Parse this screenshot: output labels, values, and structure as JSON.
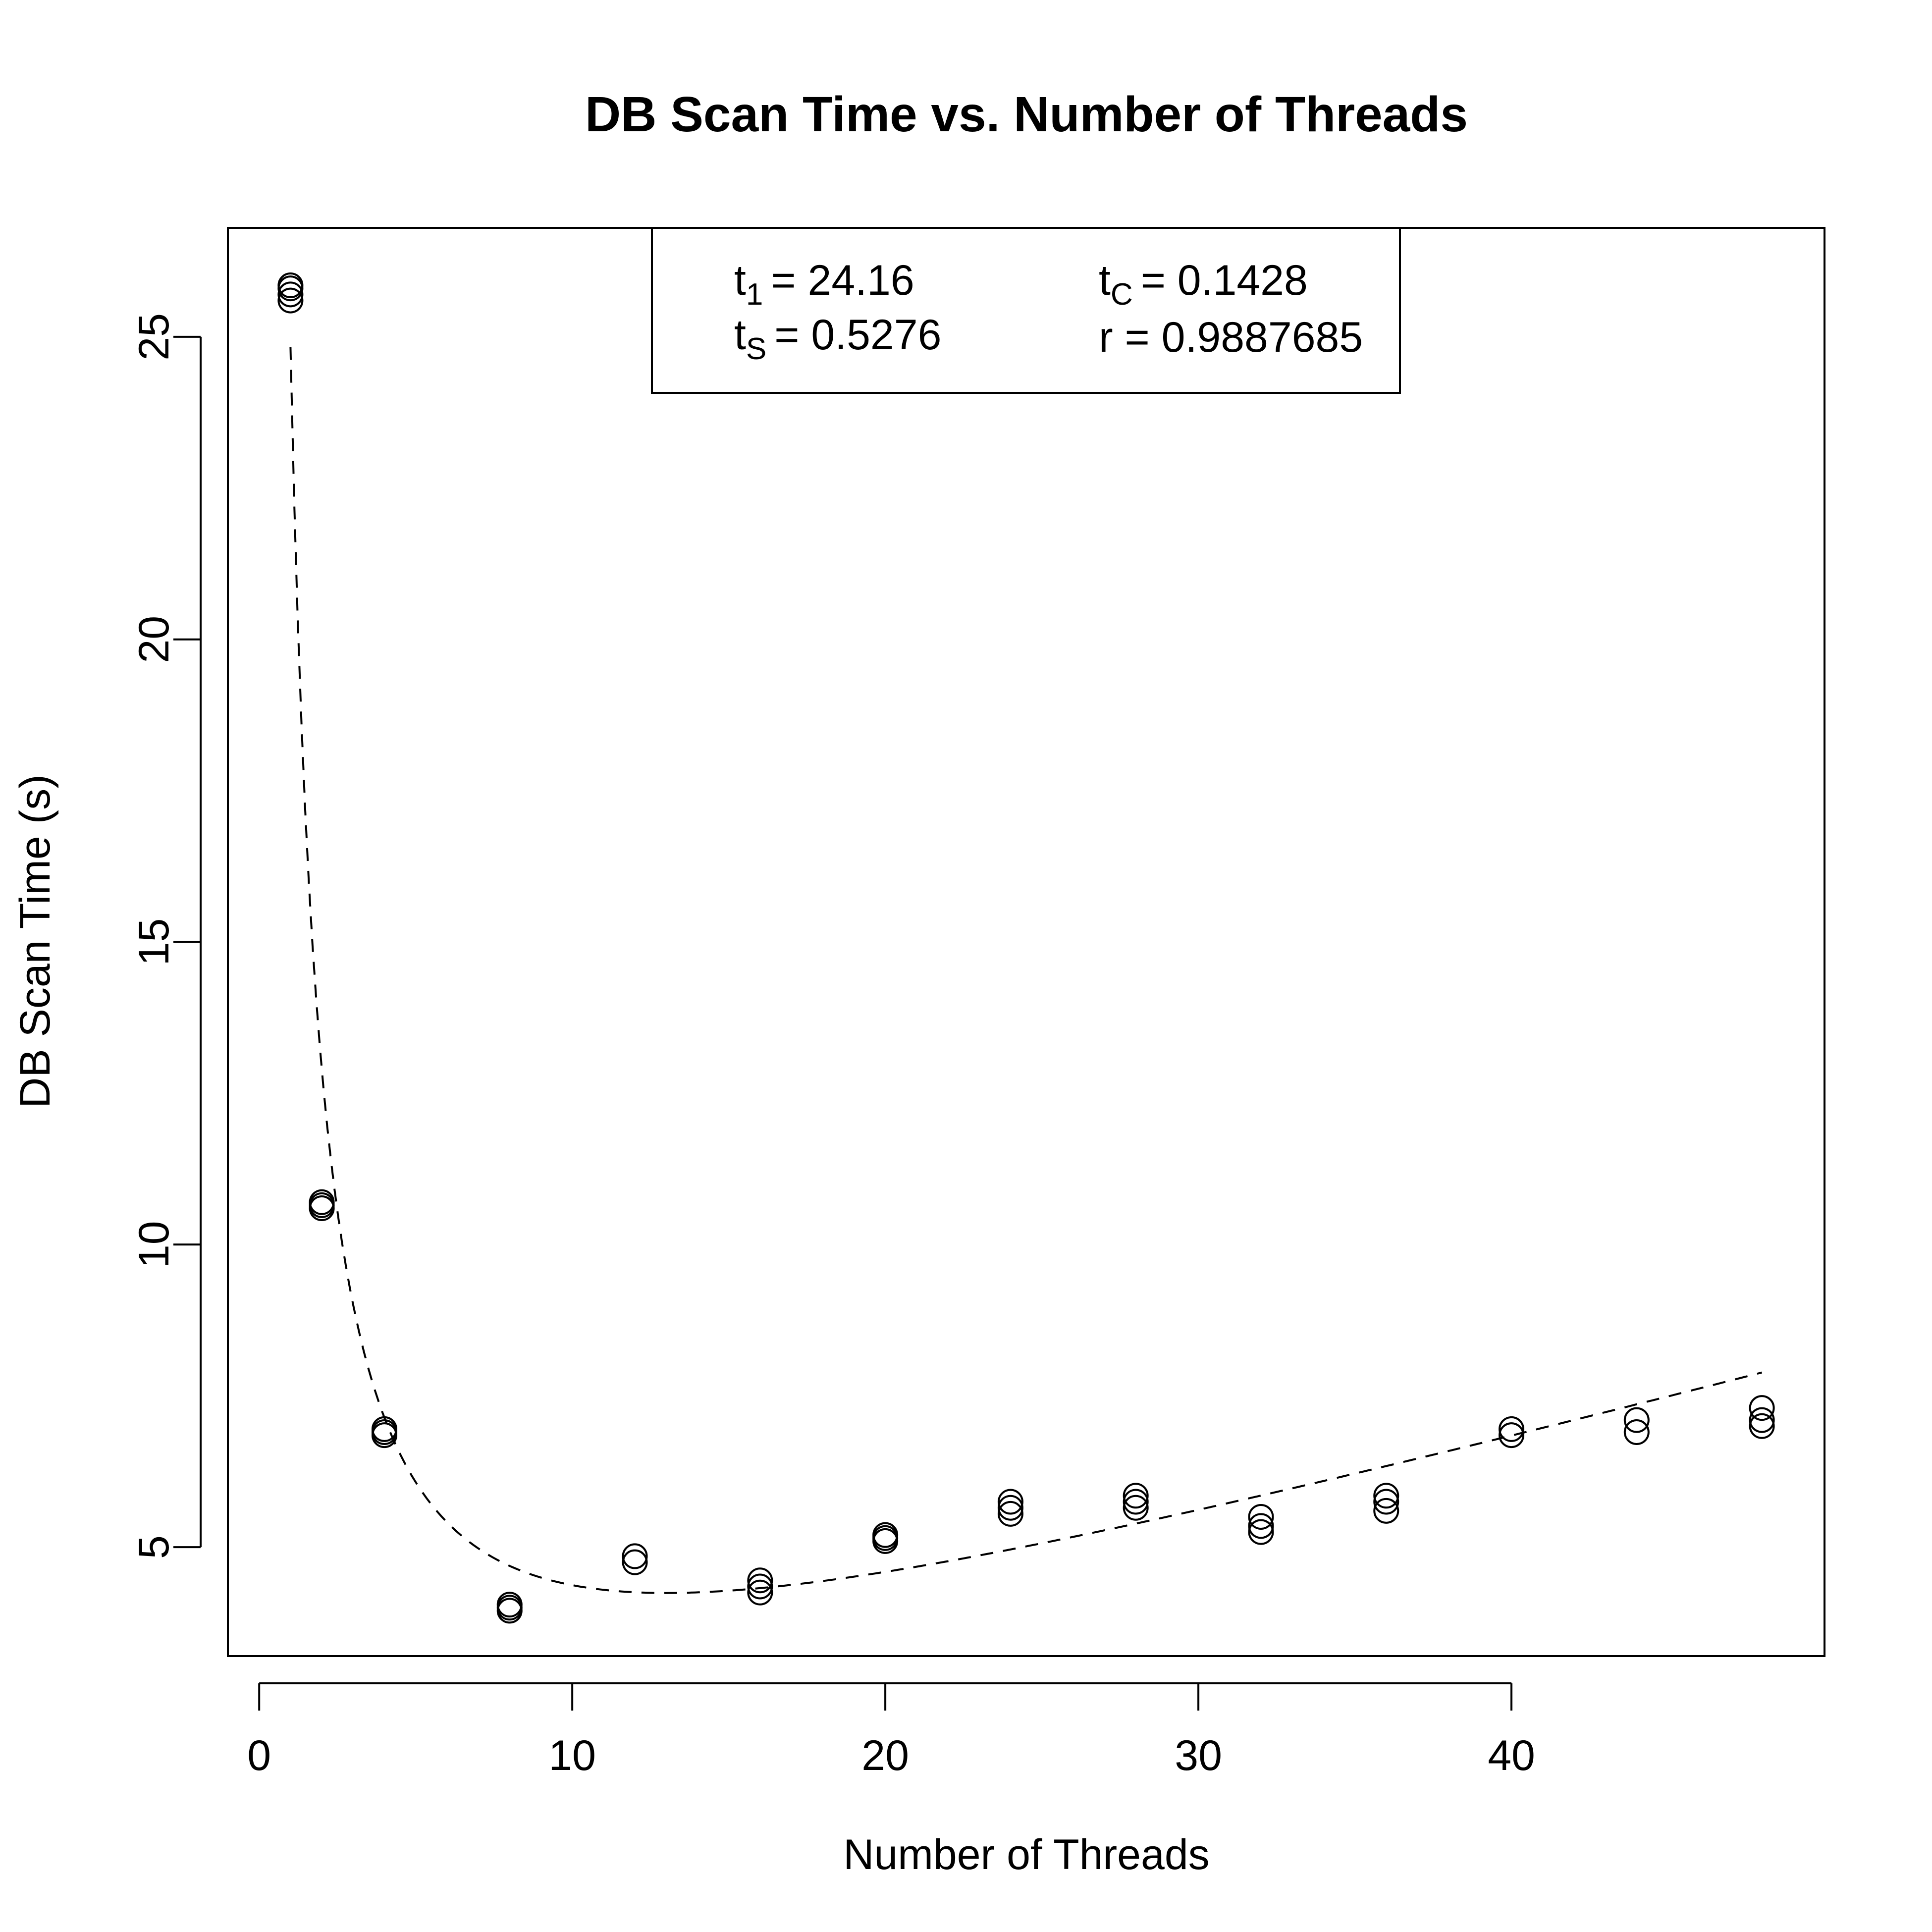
{
  "chart_data": {
    "type": "scatter",
    "title": "DB Scan Time vs. Number of Threads",
    "xlabel": "Number of Threads",
    "ylabel": "DB Scan Time (s)",
    "xlim": [
      -1,
      50
    ],
    "ylim": [
      3.2,
      26.8
    ],
    "x_ticks": [
      0,
      10,
      20,
      30,
      40
    ],
    "y_ticks": [
      5,
      10,
      15,
      20,
      25
    ],
    "grid": false,
    "marker": "open-circle",
    "points": [
      {
        "x": 1,
        "y": 25.6
      },
      {
        "x": 1,
        "y": 25.7
      },
      {
        "x": 1,
        "y": 25.8
      },
      {
        "x": 1,
        "y": 25.85
      },
      {
        "x": 2,
        "y": 10.6
      },
      {
        "x": 2,
        "y": 10.65
      },
      {
        "x": 2,
        "y": 10.7
      },
      {
        "x": 4,
        "y": 6.85
      },
      {
        "x": 4,
        "y": 6.9
      },
      {
        "x": 4,
        "y": 6.95
      },
      {
        "x": 8,
        "y": 3.95
      },
      {
        "x": 8,
        "y": 4.0
      },
      {
        "x": 8,
        "y": 4.05
      },
      {
        "x": 12,
        "y": 4.75
      },
      {
        "x": 12,
        "y": 4.85
      },
      {
        "x": 16,
        "y": 4.25
      },
      {
        "x": 16,
        "y": 4.35
      },
      {
        "x": 16,
        "y": 4.45
      },
      {
        "x": 20,
        "y": 5.1
      },
      {
        "x": 20,
        "y": 5.15
      },
      {
        "x": 20,
        "y": 5.2
      },
      {
        "x": 24,
        "y": 5.55
      },
      {
        "x": 24,
        "y": 5.65
      },
      {
        "x": 24,
        "y": 5.75
      },
      {
        "x": 28,
        "y": 5.65
      },
      {
        "x": 28,
        "y": 5.75
      },
      {
        "x": 28,
        "y": 5.85
      },
      {
        "x": 32,
        "y": 5.25
      },
      {
        "x": 32,
        "y": 5.35
      },
      {
        "x": 32,
        "y": 5.5
      },
      {
        "x": 36,
        "y": 5.6
      },
      {
        "x": 36,
        "y": 5.75
      },
      {
        "x": 36,
        "y": 5.85
      },
      {
        "x": 40,
        "y": 6.85
      },
      {
        "x": 40,
        "y": 6.95
      },
      {
        "x": 44,
        "y": 6.9
      },
      {
        "x": 44,
        "y": 7.1
      },
      {
        "x": 48,
        "y": 7.0
      },
      {
        "x": 48,
        "y": 7.1
      },
      {
        "x": 48,
        "y": 7.3
      }
    ],
    "fit_line": {
      "style": "dashed",
      "t1": 24.16,
      "ts": 0.5276,
      "tc": 0.1428,
      "x_range": [
        1,
        48
      ]
    },
    "stats_box": {
      "placement": "top-center",
      "t1_label": "t",
      "t1_sub": "1",
      "t1_value": "= 24.16",
      "ts_label": "t",
      "ts_sub": "S",
      "ts_value": "= 0.5276",
      "tc_label": "t",
      "tc_sub": "C",
      "tc_value": "= 0.1428",
      "r_text": "r = 0.9887685"
    }
  }
}
